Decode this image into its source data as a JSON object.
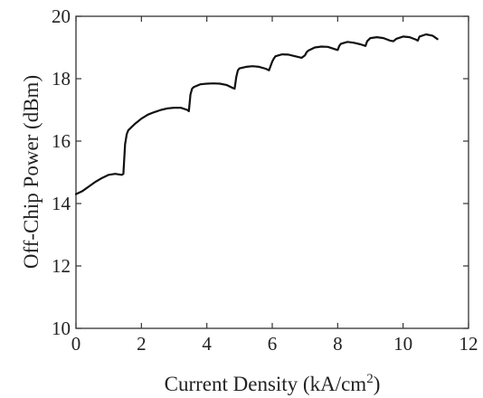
{
  "chart_data": {
    "type": "line",
    "title": "",
    "xlabel": "Current Density (kA/cm",
    "xlabel_superscript": "2",
    "xlabel_suffix": ")",
    "ylabel": "Off-Chip Power (dBm)",
    "xlim": [
      0,
      12
    ],
    "ylim": [
      10,
      20
    ],
    "xticks": [
      0,
      2,
      4,
      6,
      8,
      10,
      12
    ],
    "xtick_labels": [
      "0",
      "2",
      "4",
      "6",
      "8",
      "10",
      "12"
    ],
    "yticks": [
      10,
      12,
      14,
      16,
      18,
      20
    ],
    "ytick_labels": [
      "10",
      "12",
      "14",
      "16",
      "18",
      "20"
    ],
    "grid": false,
    "line_color": "#111111",
    "series": [
      {
        "x": [
          0.0,
          0.2,
          0.4,
          0.6,
          0.8,
          1.0,
          1.2,
          1.4,
          1.45,
          1.5,
          1.55,
          1.6,
          1.8,
          2.0,
          2.2,
          2.4,
          2.6,
          2.8,
          3.0,
          3.2,
          3.4,
          3.45,
          3.5,
          3.55,
          3.6,
          3.8,
          4.0,
          4.2,
          4.4,
          4.6,
          4.8,
          4.85,
          4.9,
          4.95,
          5.0,
          5.2,
          5.4,
          5.6,
          5.8,
          5.9,
          6.0,
          6.05,
          6.1,
          6.3,
          6.5,
          6.7,
          6.9,
          7.0,
          7.05,
          7.1,
          7.3,
          7.5,
          7.7,
          7.9,
          8.0,
          8.05,
          8.1,
          8.3,
          8.5,
          8.7,
          8.85,
          8.9,
          9.0,
          9.2,
          9.4,
          9.6,
          9.7,
          9.8,
          10.0,
          10.2,
          10.4,
          10.45,
          10.5,
          10.7,
          10.9,
          11.05
        ],
        "y": [
          14.3,
          14.4,
          14.55,
          14.7,
          14.82,
          14.92,
          14.95,
          14.92,
          14.95,
          15.9,
          16.22,
          16.35,
          16.55,
          16.72,
          16.85,
          16.93,
          17.0,
          17.05,
          17.07,
          17.07,
          17.0,
          16.96,
          17.5,
          17.68,
          17.73,
          17.82,
          17.84,
          17.85,
          17.84,
          17.8,
          17.7,
          17.68,
          18.05,
          18.27,
          18.33,
          18.38,
          18.4,
          18.38,
          18.32,
          18.27,
          18.55,
          18.65,
          18.72,
          18.78,
          18.77,
          18.72,
          18.67,
          18.75,
          18.85,
          18.9,
          19.0,
          19.03,
          19.02,
          18.95,
          18.92,
          19.05,
          19.12,
          19.18,
          19.15,
          19.1,
          19.05,
          19.2,
          19.3,
          19.33,
          19.3,
          19.22,
          19.2,
          19.28,
          19.35,
          19.33,
          19.25,
          19.22,
          19.35,
          19.42,
          19.38,
          19.27
        ]
      }
    ]
  }
}
